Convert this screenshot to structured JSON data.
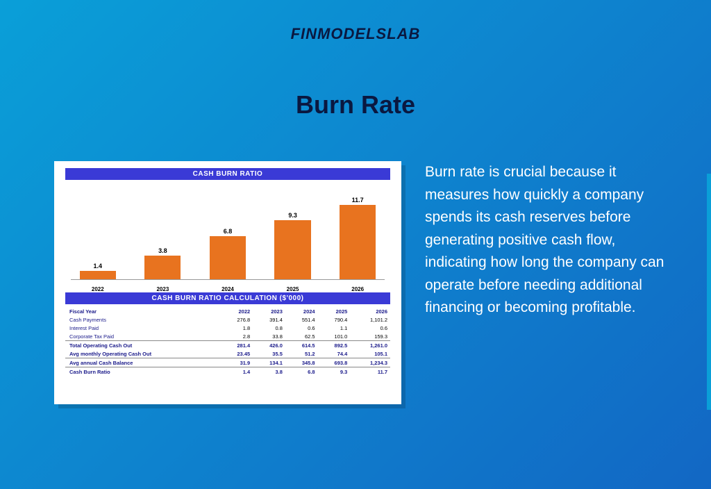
{
  "logo": "FINMODELSLAB",
  "title": "Burn Rate",
  "description": "Burn rate is crucial because it measures how quickly a company spends its cash reserves before generating positive cash flow, indicating how long the company can operate before needing additional financing or becoming profitable.",
  "chart": {
    "section_title": "CASH BURN RATIO",
    "type": "bar",
    "categories": [
      "2022",
      "2023",
      "2024",
      "2025",
      "2026"
    ],
    "values": [
      1.4,
      3.8,
      6.8,
      9.3,
      11.7
    ],
    "max_value": 13,
    "bar_color": "#e8731f",
    "label_fontsize": 9,
    "label_color": "#000000",
    "tick_fontsize": 8,
    "title_bg": "#3a3ad6",
    "title_color": "#ffffff",
    "title_fontsize": 10
  },
  "table": {
    "section_title": "CASH BURN RATIO CALCULATION ($'000)",
    "header_row": [
      "Fiscal Year",
      "2022",
      "2023",
      "2024",
      "2025",
      "2026"
    ],
    "rows": [
      {
        "label": "Cash Payments",
        "values": [
          "276.8",
          "391.4",
          "551.4",
          "790.4",
          "1,101.2"
        ],
        "bold": false
      },
      {
        "label": "Interest Paid",
        "values": [
          "1.8",
          "0.8",
          "0.6",
          "1.1",
          "0.6"
        ],
        "bold": false
      },
      {
        "label": "Corporate Tax Paid",
        "values": [
          "2.8",
          "33.8",
          "62.5",
          "101.0",
          "159.3"
        ],
        "bold": false
      },
      {
        "label": "Total Operating Cash Out",
        "values": [
          "281.4",
          "426.0",
          "614.5",
          "892.5",
          "1,261.0"
        ],
        "bold": true,
        "sep": true
      },
      {
        "label": "Avg monthly Operating Cash Out",
        "values": [
          "23.45",
          "35.5",
          "51.2",
          "74.4",
          "105.1"
        ],
        "bold": true
      },
      {
        "label": "Avg annual Cash Balance",
        "values": [
          "31.9",
          "134.1",
          "345.8",
          "693.8",
          "1,234.3"
        ],
        "bold": true,
        "sep": true
      },
      {
        "label": "Cash Burn Ratio",
        "values": [
          "1.4",
          "3.8",
          "6.8",
          "9.3",
          "11.7"
        ],
        "bold": true,
        "sep": true
      }
    ],
    "header_color": "#1a1a8a",
    "title_bg": "#3a3ad6",
    "title_color": "#ffffff",
    "fontsize": 7.5
  },
  "layout": {
    "bg_gradient_from": "#0a9fd8",
    "bg_gradient_to": "#1267c4",
    "panel_bg": "#ffffff",
    "panel_shadow": "rgba(0,0,0,0.15)",
    "desc_color": "#ffffff",
    "desc_fontsize": 21,
    "title_color": "#0a1840",
    "title_fontsize": 36,
    "logo_color": "#0a1840",
    "logo_fontsize": 22,
    "accent_bar_color": "#0a9fd8"
  }
}
